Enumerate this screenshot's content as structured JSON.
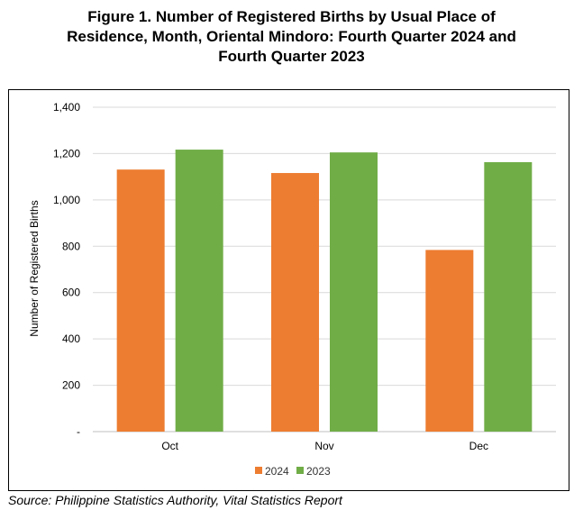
{
  "title_lines": [
    "Figure 1. Number of Registered Births by Usual Place of",
    "Residence, Month, Oriental Mindoro: Fourth Quarter 2024 and",
    "Fourth Quarter 2023"
  ],
  "source": "Source: Philippine Statistics Authority, Vital Statistics Report",
  "chart_data": {
    "type": "bar",
    "title": "Figure 1. Number of Registered Births by Usual Place of Residence, Month, Oriental Mindoro: Fourth Quarter 2024 and Fourth Quarter 2023",
    "categories": [
      "Oct",
      "Nov",
      "Dec"
    ],
    "series": [
      {
        "name": "2024",
        "values": [
          1131,
          1116,
          784
        ],
        "color": "#ED7D31"
      },
      {
        "name": "2023",
        "values": [
          1217,
          1205,
          1163
        ],
        "color": "#70AD47"
      }
    ],
    "xlabel": "",
    "ylabel": "Number of Registered Births",
    "ylim": [
      0,
      1400
    ],
    "yticks": [
      0,
      200,
      400,
      600,
      800,
      1000,
      1200,
      1400
    ],
    "ytick_labels": [
      "-",
      "200",
      "400",
      "600",
      "800",
      "1,000",
      "1,200",
      "1,400"
    ],
    "grid": true,
    "legend": "bottom"
  }
}
